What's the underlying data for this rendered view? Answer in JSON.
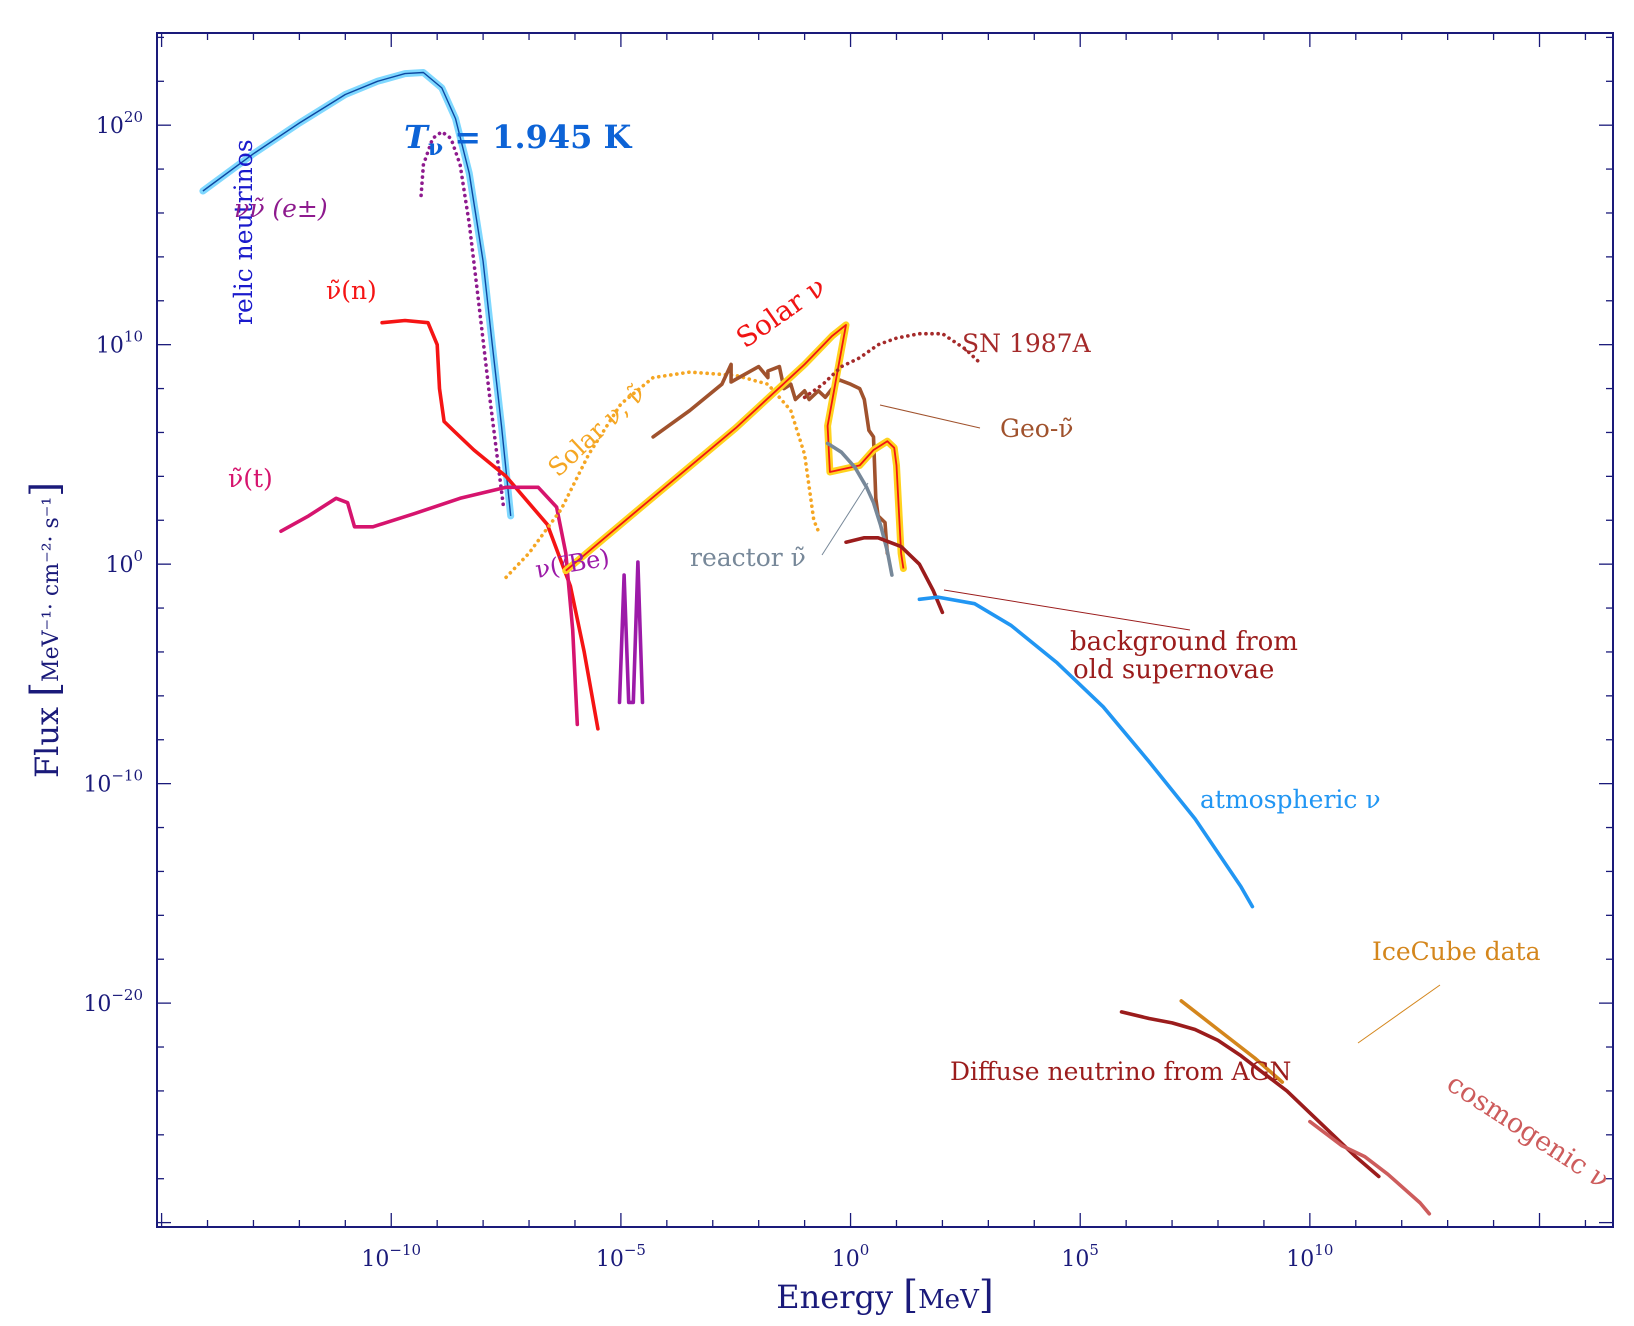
{
  "chart_data": {
    "type": "line",
    "title": "",
    "xlabel": "Energy",
    "xlabel_unit": "MeV",
    "ylabel": "Flux",
    "ylabel_unit": "MeV⁻¹· cm⁻²· s⁻¹",
    "xscale": "log",
    "yscale": "log",
    "xlim_log10": [
      -15.1,
      16.6
    ],
    "ylim_log10": [
      -30.2,
      24.2
    ],
    "x_ticks": [
      {
        "label": "10",
        "exp": "−10",
        "log": -10
      },
      {
        "label": "10",
        "exp": "−5",
        "log": -5
      },
      {
        "label": "10",
        "exp": "0",
        "log": 0
      },
      {
        "label": "10",
        "exp": "5",
        "log": 5
      },
      {
        "label": "10",
        "exp": "10",
        "log": 10
      }
    ],
    "y_ticks": [
      {
        "label": "10",
        "exp": "20",
        "log": 20
      },
      {
        "label": "10",
        "exp": "10",
        "log": 10
      },
      {
        "label": "10",
        "exp": "0",
        "log": 0
      },
      {
        "label": "10",
        "exp": "−10",
        "log": -10
      },
      {
        "label": "10",
        "exp": "−20",
        "log": -20
      }
    ],
    "series": [
      {
        "name": "relic neutrinos",
        "color": "#29b6f6",
        "style": "glow-solid",
        "points_log10": [
          [
            -14.1,
            17.0
          ],
          [
            -13.0,
            18.7
          ],
          [
            -12.0,
            20.1
          ],
          [
            -11.0,
            21.4
          ],
          [
            -10.3,
            22.0
          ],
          [
            -9.7,
            22.35
          ],
          [
            -9.3,
            22.4
          ],
          [
            -8.9,
            21.7
          ],
          [
            -8.6,
            20.3
          ],
          [
            -8.3,
            17.8
          ],
          [
            -8.0,
            13.8
          ],
          [
            -7.8,
            10.0
          ],
          [
            -7.6,
            6.3
          ],
          [
            -7.4,
            2.2
          ]
        ]
      },
      {
        "name": "νν̃ (e±)",
        "color": "#8e1a8e",
        "style": "dotted",
        "points_log10": [
          [
            -9.35,
            16.8
          ],
          [
            -9.3,
            18.2
          ],
          [
            -9.1,
            19.4
          ],
          [
            -8.9,
            19.7
          ],
          [
            -8.7,
            19.4
          ],
          [
            -8.5,
            18.2
          ],
          [
            -8.3,
            15.5
          ],
          [
            -8.1,
            12.0
          ],
          [
            -7.85,
            7.5
          ],
          [
            -7.55,
            2.5
          ]
        ]
      },
      {
        "name": "ν̃(n)",
        "color": "#f51414",
        "style": "solid",
        "points_log10": [
          [
            -10.2,
            11.0
          ],
          [
            -9.7,
            11.1
          ],
          [
            -9.2,
            11.0
          ],
          [
            -9.0,
            10.0
          ],
          [
            -8.95,
            8.0
          ],
          [
            -8.85,
            6.5
          ],
          [
            -8.6,
            6.0
          ],
          [
            -8.2,
            5.2
          ],
          [
            -7.5,
            4.0
          ],
          [
            -6.6,
            1.8
          ],
          [
            -6.1,
            -1.0
          ],
          [
            -5.8,
            -4.0
          ],
          [
            -5.5,
            -7.5
          ]
        ]
      },
      {
        "name": "ν̃(t)",
        "color": "#d6146e",
        "style": "solid",
        "points_log10": [
          [
            -12.4,
            1.5
          ],
          [
            -11.8,
            2.2
          ],
          [
            -11.2,
            3.0
          ],
          [
            -10.95,
            2.8
          ],
          [
            -10.8,
            1.7
          ],
          [
            -10.4,
            1.7
          ],
          [
            -9.5,
            2.3
          ],
          [
            -8.5,
            3.0
          ],
          [
            -7.5,
            3.5
          ],
          [
            -6.8,
            3.5
          ],
          [
            -6.4,
            2.6
          ],
          [
            -6.2,
            0.5
          ],
          [
            -6.05,
            -3.0
          ],
          [
            -5.95,
            -7.3
          ]
        ]
      },
      {
        "name": "Solar ν, ν̃",
        "color": "#f5a623",
        "style": "dotted",
        "points_log10": [
          [
            -7.5,
            -0.6
          ],
          [
            -7.0,
            0.5
          ],
          [
            -6.3,
            2.5
          ],
          [
            -5.7,
            5.0
          ],
          [
            -5.0,
            7.3
          ],
          [
            -4.3,
            8.5
          ],
          [
            -3.5,
            8.75
          ],
          [
            -2.5,
            8.6
          ],
          [
            -1.8,
            8.2
          ],
          [
            -1.3,
            7.0
          ],
          [
            -1.0,
            5.0
          ],
          [
            -0.8,
            2.0
          ],
          [
            -0.7,
            1.5
          ]
        ]
      },
      {
        "name": "ν(⁷Be)",
        "color": "#9c1aa8",
        "style": "solid",
        "points_log10": [
          [
            -5.03,
            -6.3
          ],
          [
            -4.93,
            -0.5
          ],
          [
            -4.83,
            -6.3
          ],
          [
            -4.73,
            -6.3
          ],
          [
            -4.63,
            0.1
          ],
          [
            -4.53,
            -6.3
          ]
        ]
      },
      {
        "name": "Geo-ν̃",
        "color": "#a0522d",
        "style": "solid",
        "points_log10": [
          [
            -4.3,
            5.8
          ],
          [
            -3.5,
            7.0
          ],
          [
            -2.8,
            8.2
          ],
          [
            -2.6,
            9.1
          ],
          [
            -2.6,
            8.3
          ],
          [
            -2.0,
            9.0
          ],
          [
            -1.8,
            8.5
          ],
          [
            -1.8,
            8.8
          ],
          [
            -1.55,
            9.0
          ],
          [
            -1.45,
            8.0
          ],
          [
            -1.3,
            8.2
          ],
          [
            -1.2,
            7.5
          ],
          [
            -1.0,
            7.9
          ],
          [
            -0.9,
            7.5
          ],
          [
            -0.7,
            7.9
          ],
          [
            -0.55,
            7.6
          ],
          [
            -0.4,
            8.0
          ],
          [
            -0.25,
            8.4
          ],
          [
            0.0,
            8.2
          ],
          [
            0.2,
            8.0
          ],
          [
            0.3,
            7.5
          ],
          [
            0.4,
            6.1
          ],
          [
            0.5,
            5.8
          ],
          [
            0.55,
            3.0
          ],
          [
            0.6,
            2.2
          ],
          [
            0.75,
            1.9
          ],
          [
            0.8,
            0.5
          ]
        ]
      },
      {
        "name": "Solar ν",
        "color": "#f01414",
        "halo": "#ffd21e",
        "style": "glow-solid",
        "points_log10": [
          [
            -6.2,
            -0.3
          ],
          [
            -4.5,
            2.7
          ],
          [
            -2.5,
            6.2
          ],
          [
            -1.0,
            9.1
          ],
          [
            -0.4,
            10.4
          ],
          [
            -0.1,
            10.9
          ],
          [
            -0.5,
            6.3
          ],
          [
            -0.45,
            4.2
          ],
          [
            0.2,
            4.5
          ],
          [
            0.5,
            5.2
          ],
          [
            0.8,
            5.6
          ],
          [
            0.95,
            5.3
          ],
          [
            1.0,
            4.5
          ],
          [
            1.1,
            0.5
          ],
          [
            1.15,
            -0.2
          ]
        ]
      },
      {
        "name": "SN 1987A",
        "color": "#a52a2a",
        "style": "dotted",
        "points_log10": [
          [
            -1.0,
            7.6
          ],
          [
            -0.6,
            8.2
          ],
          [
            -0.2,
            9.0
          ],
          [
            0.2,
            9.4
          ],
          [
            0.6,
            10.0
          ],
          [
            1.0,
            10.3
          ],
          [
            1.5,
            10.5
          ],
          [
            2.0,
            10.5
          ],
          [
            2.5,
            9.8
          ],
          [
            2.8,
            9.2
          ]
        ]
      },
      {
        "name": "reactor ν̃",
        "color": "#778899",
        "style": "solid",
        "points_log10": [
          [
            -0.5,
            5.5
          ],
          [
            -0.2,
            5.1
          ],
          [
            0.1,
            4.4
          ],
          [
            0.35,
            3.5
          ],
          [
            0.5,
            2.8
          ],
          [
            0.65,
            1.8
          ],
          [
            0.8,
            0.6
          ],
          [
            0.9,
            -0.5
          ]
        ]
      },
      {
        "name": "background from old supernovae",
        "color": "#9b1c1c",
        "style": "solid",
        "points_log10": [
          [
            -0.1,
            1.0
          ],
          [
            0.3,
            1.2
          ],
          [
            0.6,
            1.2
          ],
          [
            1.1,
            0.8
          ],
          [
            1.5,
            0.0
          ],
          [
            1.8,
            -1.2
          ],
          [
            2.0,
            -2.2
          ]
        ]
      },
      {
        "name": "atmospheric ν",
        "color": "#2196f3",
        "style": "solid",
        "points_log10": [
          [
            1.5,
            -1.6
          ],
          [
            1.9,
            -1.5
          ],
          [
            2.7,
            -1.8
          ],
          [
            3.5,
            -2.8
          ],
          [
            4.5,
            -4.5
          ],
          [
            5.5,
            -6.5
          ],
          [
            6.5,
            -9.0
          ],
          [
            7.5,
            -11.6
          ],
          [
            8.5,
            -14.7
          ],
          [
            8.75,
            -15.6
          ]
        ]
      },
      {
        "name": "IceCube data",
        "color": "#d4861c",
        "style": "solid",
        "points_log10": [
          [
            7.2,
            -19.9
          ],
          [
            8.0,
            -21.2
          ],
          [
            8.8,
            -22.5
          ],
          [
            9.4,
            -23.6
          ]
        ]
      },
      {
        "name": "Diffuse neutrino from AGN",
        "color": "#9b1c1c",
        "style": "solid",
        "points_log10": [
          [
            5.9,
            -20.4
          ],
          [
            6.5,
            -20.7
          ],
          [
            7.0,
            -20.9
          ],
          [
            7.5,
            -21.2
          ],
          [
            8.0,
            -21.7
          ],
          [
            8.5,
            -22.4
          ],
          [
            9.0,
            -23.2
          ],
          [
            9.5,
            -24.0
          ],
          [
            10.0,
            -25.0
          ],
          [
            10.5,
            -26.0
          ],
          [
            11.0,
            -27.0
          ],
          [
            11.5,
            -27.9
          ]
        ]
      },
      {
        "name": "cosmogenic ν",
        "color": "#cd5c5c",
        "style": "solid",
        "points_log10": [
          [
            10.0,
            -25.4
          ],
          [
            10.7,
            -26.5
          ],
          [
            11.2,
            -27.0
          ],
          [
            11.7,
            -27.8
          ],
          [
            12.4,
            -29.1
          ],
          [
            12.6,
            -29.6
          ]
        ]
      }
    ],
    "annotations": [
      {
        "text": "T",
        "sub": "ν",
        "rest": " = 1.945 K",
        "color": "#0d63d6"
      },
      {
        "text": "relic neutrinos",
        "color": "#1a1acc"
      },
      {
        "text": "νν̃ (e±)",
        "color": "#8e1a8e"
      },
      {
        "text": "ν̃(n)",
        "color": "#f51414"
      },
      {
        "text": "ν̃(t)",
        "color": "#d6146e"
      },
      {
        "text": "Solar ν",
        "color": "#f01414"
      },
      {
        "text": "Solar ν, ν̃",
        "color": "#f5a623"
      },
      {
        "text": "ν(⁷Be)",
        "color": "#9c1aa8"
      },
      {
        "text": "SN 1987A",
        "color": "#a52a2a"
      },
      {
        "text": "Geo-ν̃",
        "color": "#a0522d"
      },
      {
        "text": "reactor ν̃",
        "color": "#778899"
      },
      {
        "text": "background from",
        "color": "#9b1c1c"
      },
      {
        "text": "old supernovae",
        "color": "#9b1c1c"
      },
      {
        "text": "atmospheric ν",
        "color": "#2196f3"
      },
      {
        "text": "IceCube data",
        "color": "#d4861c"
      },
      {
        "text": "Diffuse neutrino from AGN",
        "color": "#9b1c1c"
      },
      {
        "text": "cosmogenic ν",
        "color": "#cd5c5c"
      }
    ],
    "frame_color": "#1a1a7a",
    "label_color": "#1a1a7a"
  }
}
